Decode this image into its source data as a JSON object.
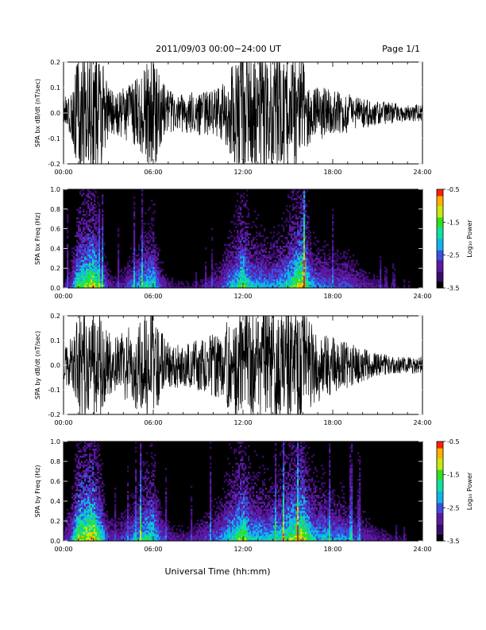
{
  "header": {
    "title": "2011/09/03  00:00−24:00 UT",
    "page": "Page 1/1"
  },
  "x_axis": {
    "label": "Universal Time (hh:mm)",
    "ticks": [
      "00:00",
      "06:00",
      "12:00",
      "18:00",
      "24:00"
    ],
    "range_hours": [
      0,
      24
    ]
  },
  "colorbar": {
    "label": "Log₁₀ Power",
    "ticks": [
      "-0.5",
      "-1.5",
      "-2.5",
      "-3.5"
    ],
    "range": [
      -3.5,
      -0.5
    ]
  },
  "colors": {
    "trace": "#000000",
    "background": "#000000",
    "colormap": [
      "#000000",
      "#3a0a6a",
      "#5a1aa0",
      "#3a50e0",
      "#10b4e8",
      "#10e0a0",
      "#30e020",
      "#c8e810",
      "#ffb000",
      "#ff2000"
    ]
  },
  "chart_data": [
    {
      "type": "line",
      "panel": "bx-dbdt",
      "ylabel": "SPA bx dB/dt (nT/sec)",
      "ylim": [
        -0.2,
        0.2
      ],
      "yticks": [
        "0.2",
        "0.1",
        "0.0",
        "-0.1",
        "-0.2"
      ],
      "x": [
        0,
        0.5,
        1,
        1.5,
        2,
        2.5,
        3,
        3.5,
        4,
        4.5,
        5,
        5.5,
        6,
        6.5,
        7,
        7.5,
        8,
        8.5,
        9,
        9.5,
        10,
        10.5,
        11,
        11.5,
        12,
        12.5,
        13,
        13.5,
        14,
        14.5,
        15,
        15.5,
        16,
        16.5,
        17,
        17.5,
        18,
        18.5,
        19,
        19.5,
        20,
        20.5,
        21,
        21.5,
        22,
        22.5,
        23,
        23.5,
        24
      ],
      "amplitude": [
        0.05,
        0.08,
        0.2,
        0.2,
        0.2,
        0.2,
        0.1,
        0.08,
        0.09,
        0.1,
        0.12,
        0.18,
        0.2,
        0.12,
        0.08,
        0.07,
        0.07,
        0.07,
        0.08,
        0.08,
        0.08,
        0.09,
        0.13,
        0.2,
        0.2,
        0.2,
        0.2,
        0.2,
        0.2,
        0.2,
        0.2,
        0.2,
        0.2,
        0.1,
        0.09,
        0.09,
        0.08,
        0.07,
        0.07,
        0.06,
        0.05,
        0.05,
        0.04,
        0.04,
        0.04,
        0.03,
        0.03,
        0.03,
        0.03
      ]
    },
    {
      "type": "heatmap",
      "panel": "bx-freq",
      "ylabel": "SPA bx Freq (Hz)",
      "ylim": [
        0,
        1.0
      ],
      "yticks": [
        "1.0",
        "0.8",
        "0.6",
        "0.4",
        "0.2",
        "0.0"
      ],
      "x": [
        0,
        0.5,
        1,
        1.5,
        2,
        2.5,
        3,
        3.5,
        4,
        4.5,
        5,
        5.5,
        6,
        6.5,
        7,
        7.5,
        8,
        8.5,
        9,
        9.5,
        10,
        10.5,
        11,
        11.5,
        12,
        12.5,
        13,
        13.5,
        14,
        14.5,
        15,
        15.5,
        16,
        16.5,
        17,
        17.5,
        18,
        18.5,
        19,
        19.5,
        20,
        20.5,
        21,
        21.5,
        22,
        22.5,
        23,
        23.5,
        24
      ],
      "activity": [
        0.15,
        0.3,
        0.7,
        0.75,
        0.85,
        0.5,
        0.25,
        0.2,
        0.25,
        0.35,
        0.45,
        0.55,
        0.6,
        0.3,
        0.2,
        0.15,
        0.15,
        0.15,
        0.15,
        0.2,
        0.25,
        0.3,
        0.45,
        0.55,
        0.75,
        0.5,
        0.5,
        0.45,
        0.45,
        0.5,
        0.6,
        0.75,
        0.9,
        0.5,
        0.4,
        0.4,
        0.35,
        0.35,
        0.35,
        0.3,
        0.25,
        0.2,
        0.2,
        0.15,
        0.15,
        0.1,
        0.1,
        0.08,
        0.08
      ]
    },
    {
      "type": "line",
      "panel": "by-dbdt",
      "ylabel": "SPA by dB/dt (nT/sec)",
      "ylim": [
        -0.2,
        0.2
      ],
      "yticks": [
        "0.2",
        "0.1",
        "0.0",
        "-0.1",
        "-0.2"
      ],
      "x": [
        0,
        0.5,
        1,
        1.5,
        2,
        2.5,
        3,
        3.5,
        4,
        4.5,
        5,
        5.5,
        6,
        6.5,
        7,
        7.5,
        8,
        8.5,
        9,
        9.5,
        10,
        10.5,
        11,
        11.5,
        12,
        12.5,
        13,
        13.5,
        14,
        14.5,
        15,
        15.5,
        16,
        16.5,
        17,
        17.5,
        18,
        18.5,
        19,
        19.5,
        20,
        20.5,
        21,
        21.5,
        22,
        22.5,
        23,
        23.5,
        24
      ],
      "amplitude": [
        0.05,
        0.1,
        0.2,
        0.2,
        0.2,
        0.2,
        0.12,
        0.1,
        0.12,
        0.14,
        0.16,
        0.2,
        0.2,
        0.12,
        0.08,
        0.08,
        0.08,
        0.08,
        0.09,
        0.1,
        0.11,
        0.12,
        0.16,
        0.2,
        0.2,
        0.2,
        0.2,
        0.2,
        0.2,
        0.2,
        0.2,
        0.2,
        0.2,
        0.15,
        0.13,
        0.12,
        0.1,
        0.09,
        0.08,
        0.07,
        0.06,
        0.05,
        0.04,
        0.04,
        0.03,
        0.03,
        0.03,
        0.03,
        0.03
      ]
    },
    {
      "type": "heatmap",
      "panel": "by-freq",
      "ylabel": "SPA by Freq (Hz)",
      "ylim": [
        0,
        1.0
      ],
      "yticks": [
        "1.0",
        "0.8",
        "0.6",
        "0.4",
        "0.2",
        "0.0"
      ],
      "x": [
        0,
        0.5,
        1,
        1.5,
        2,
        2.5,
        3,
        3.5,
        4,
        4.5,
        5,
        5.5,
        6,
        6.5,
        7,
        7.5,
        8,
        8.5,
        9,
        9.5,
        10,
        10.5,
        11,
        11.5,
        12,
        12.5,
        13,
        13.5,
        14,
        14.5,
        15,
        15.5,
        16,
        16.5,
        17,
        17.5,
        18,
        18.5,
        19,
        19.5,
        20,
        20.5,
        21,
        21.5,
        22,
        22.5,
        23,
        23.5,
        24
      ],
      "activity": [
        0.2,
        0.4,
        0.8,
        0.85,
        0.9,
        0.6,
        0.3,
        0.25,
        0.3,
        0.4,
        0.5,
        0.6,
        0.65,
        0.35,
        0.25,
        0.2,
        0.2,
        0.2,
        0.25,
        0.3,
        0.35,
        0.4,
        0.55,
        0.65,
        0.8,
        0.55,
        0.55,
        0.5,
        0.55,
        0.6,
        0.7,
        0.8,
        0.9,
        0.6,
        0.5,
        0.5,
        0.45,
        0.45,
        0.4,
        0.35,
        0.3,
        0.25,
        0.2,
        0.2,
        0.15,
        0.15,
        0.1,
        0.1,
        0.1
      ]
    }
  ]
}
